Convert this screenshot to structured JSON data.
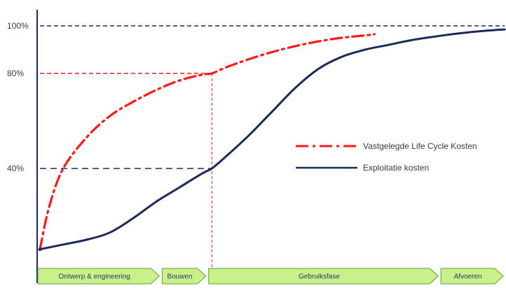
{
  "chart_data": {
    "type": "line",
    "title": "",
    "xlabel": "",
    "ylabel": "",
    "x_range": [
      0,
      100
    ],
    "ylim": [
      0,
      100
    ],
    "y_ticks": [
      {
        "value": 100,
        "label": "100%"
      },
      {
        "value": 80,
        "label": "80%"
      },
      {
        "value": 40,
        "label": "40%"
      }
    ],
    "series": [
      {
        "name": "Vastgelegde Life Cycle Kosten",
        "color": "#ff1a1a",
        "style": "dash-dot",
        "x": [
          0,
          2,
          5,
          10,
          15,
          20,
          25,
          30,
          35,
          37,
          40,
          45,
          50,
          55,
          60,
          65,
          70,
          72
        ],
        "y": [
          6,
          24,
          40,
          53,
          62,
          68,
          73,
          77,
          79.5,
          80,
          82.5,
          86,
          89,
          91.5,
          93.5,
          95,
          96,
          96.5
        ]
      },
      {
        "name": "Exploitatie kosten",
        "color": "#1c2a5a",
        "style": "solid",
        "x": [
          0,
          5,
          10,
          15,
          20,
          25,
          30,
          35,
          37,
          40,
          45,
          50,
          55,
          60,
          65,
          70,
          75,
          80,
          85,
          90,
          95,
          100
        ],
        "y": [
          6,
          8,
          10,
          13,
          19,
          26,
          32,
          38,
          40,
          45,
          54,
          64,
          74,
          82,
          87,
          90,
          92,
          94,
          95.5,
          96.8,
          97.8,
          98.5
        ]
      }
    ],
    "reference_lines": {
      "horizontal": [
        {
          "y": 100,
          "color": "#1c2a5a",
          "x_to": 100
        },
        {
          "y": 80,
          "color": "#ff1a1a",
          "x_to": 37
        },
        {
          "y": 40,
          "color": "#1c2a5a",
          "x_to": 37
        }
      ],
      "vertical": [
        {
          "x": 37,
          "color": "#ff1a1a",
          "y_from": 80,
          "y_to": -5
        }
      ]
    },
    "legend": {
      "position": "right",
      "entries": [
        "Vastgelegde Life Cycle Kosten",
        "Exploitatie kosten"
      ]
    },
    "phases": [
      {
        "label": "Ontwerp  & engineering",
        "x_start": 0,
        "x_end": 26
      },
      {
        "label": "Bouwen",
        "x_start": 26,
        "x_end": 36
      },
      {
        "label": "Gebruiksfase",
        "x_start": 36,
        "x_end": 86
      },
      {
        "label": "Afvoeren",
        "x_start": 86,
        "x_end": 100
      }
    ],
    "phase_color": "#c9f08b",
    "phase_border": "#5aa02c",
    "grid": false
  }
}
